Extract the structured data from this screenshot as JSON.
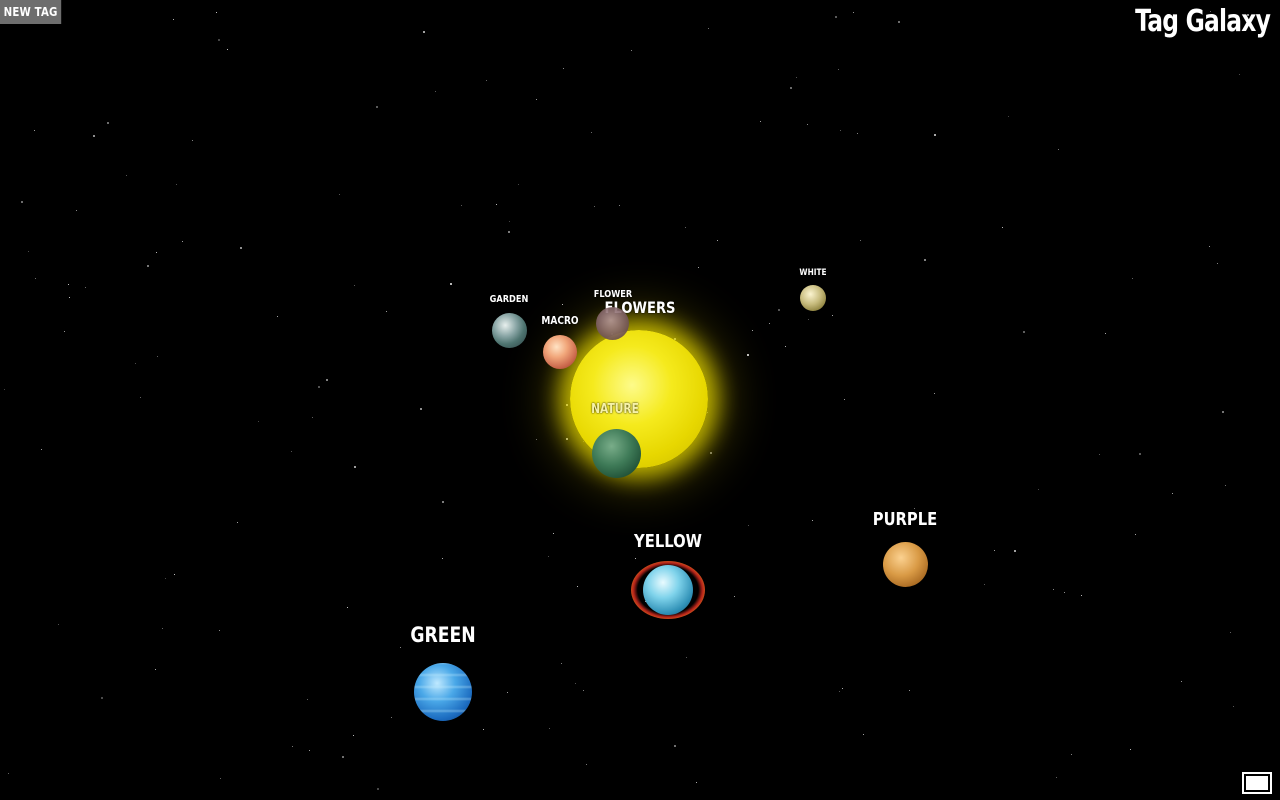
{
  "toolbar": {
    "new_tag_label": "NEW TAG"
  },
  "brand": {
    "title": "Tag Galaxy"
  },
  "colors": {
    "background": "#000000",
    "sun": "#f5ea1d",
    "button_bg": "#6e6e6e",
    "text": "#ffffff"
  },
  "galaxy": {
    "sun": {
      "label": "FLOWERS"
    },
    "planets": [
      {
        "id": "garden",
        "label": "GARDEN"
      },
      {
        "id": "macro",
        "label": "MACRO"
      },
      {
        "id": "flower",
        "label": "FLOWER"
      },
      {
        "id": "white",
        "label": "WHITE"
      },
      {
        "id": "nature",
        "label": "NATURE"
      },
      {
        "id": "yellow",
        "label": "YELLOW",
        "selected": true
      },
      {
        "id": "purple",
        "label": "PURPLE"
      },
      {
        "id": "green",
        "label": "GREEN"
      }
    ]
  },
  "icons": {
    "fullscreen": "fullscreen-icon"
  }
}
